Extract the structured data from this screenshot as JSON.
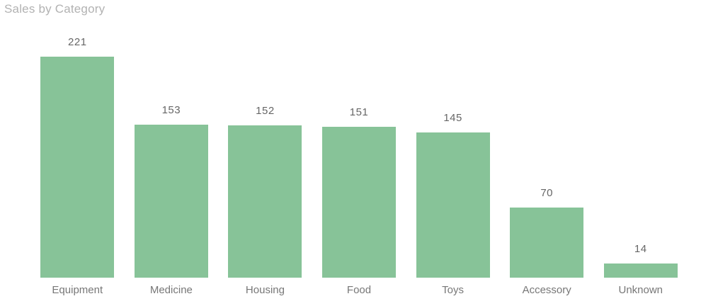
{
  "chart_data": {
    "type": "bar",
    "title": "Sales by Category",
    "categories": [
      "Equipment",
      "Medicine",
      "Housing",
      "Food",
      "Toys",
      "Accessory",
      "Unknown"
    ],
    "values": [
      221,
      153,
      152,
      151,
      145,
      70,
      14
    ],
    "xlabel": "",
    "ylabel": "",
    "ylim": [
      0,
      221
    ],
    "grid": false,
    "legend": "none",
    "data_labels_visible": true,
    "colors": {
      "bar": "#87C398",
      "value_label": "#666666",
      "category_label": "#777777",
      "title": "#B2B2B2",
      "background": "#FFFFFF"
    }
  }
}
